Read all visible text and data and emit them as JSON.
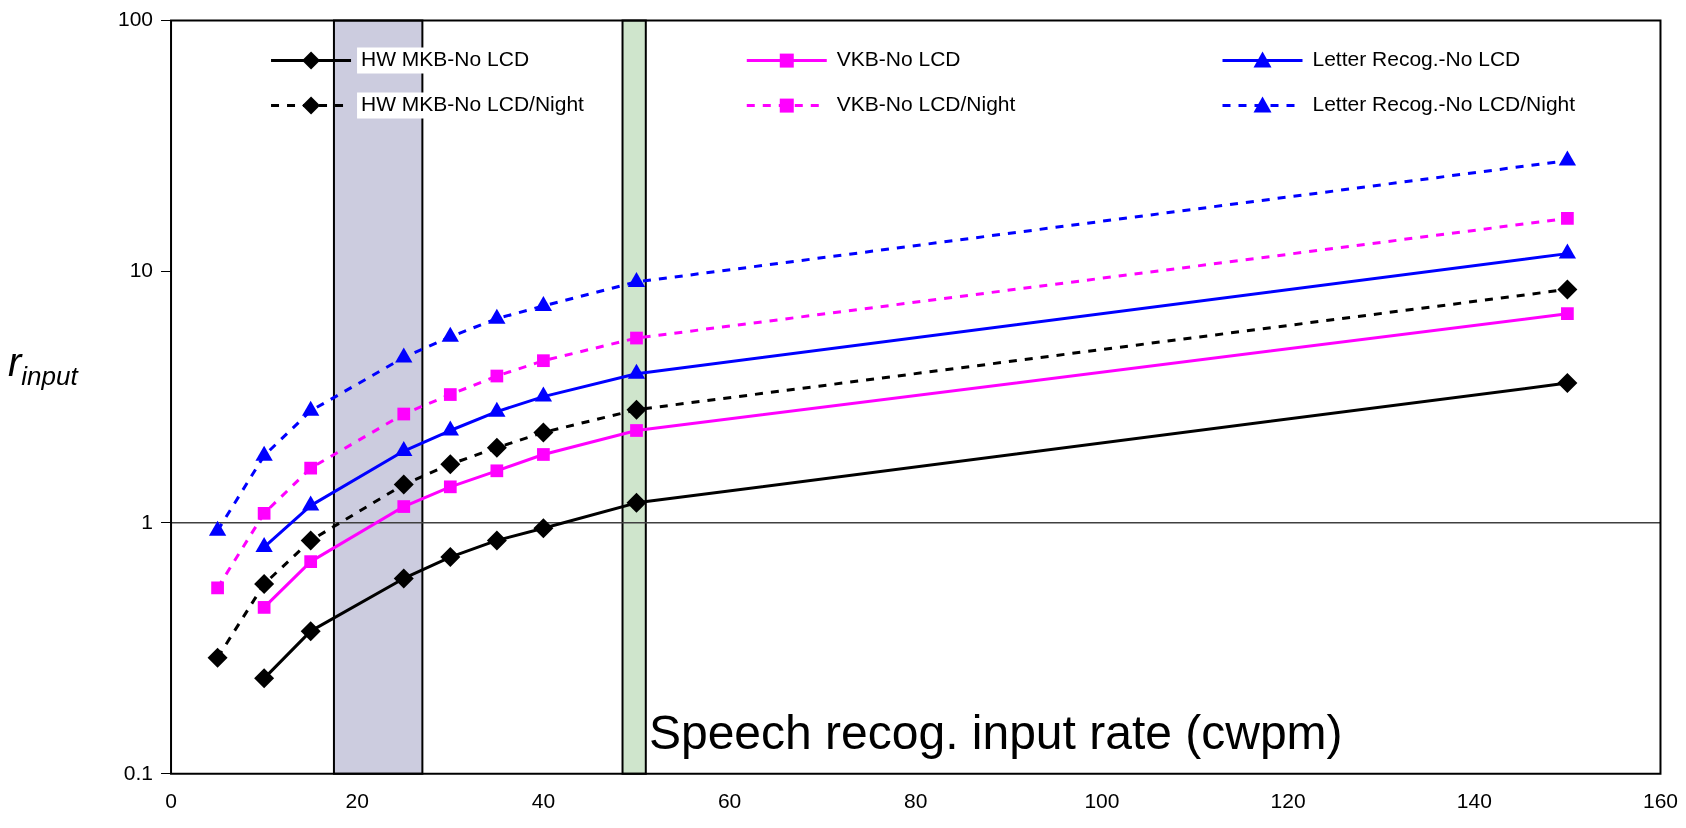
{
  "chart_data": {
    "type": "line",
    "xlabel": "Speech recog. input rate (cwpm)",
    "ylabel": "r$_{input}$",
    "xlim": [
      0,
      160
    ],
    "xticks": [
      0,
      20,
      40,
      60,
      80,
      100,
      120,
      140,
      160
    ],
    "ylim": [
      0.1,
      100
    ],
    "yticks": [
      0.1,
      1,
      10,
      100
    ],
    "log": "y",
    "grid": false,
    "legend": "top",
    "ref_lines": [
      {
        "axis": "y",
        "value": 1,
        "color": "#404040"
      }
    ],
    "bands": [
      {
        "axis": "x",
        "from": 17.5,
        "to": 27,
        "color": "#ccccdf"
      },
      {
        "axis": "x",
        "from": 48.5,
        "to": 51,
        "color": "#cfe5cc"
      }
    ],
    "series": [
      {
        "name": "HW MKB-No LCD",
        "color": "#000000",
        "marker": "diamond",
        "line_style": "solid",
        "x": [
          10,
          15,
          25,
          30,
          35,
          40,
          50,
          150
        ],
        "values": [
          0.24,
          0.37,
          0.6,
          0.73,
          0.85,
          0.95,
          1.2,
          3.6
        ]
      },
      {
        "name": "VKB-No LCD",
        "color": "#ff00ff",
        "marker": "square",
        "line_style": "solid",
        "x": [
          10,
          15,
          25,
          30,
          35,
          40,
          50,
          150
        ],
        "values": [
          0.46,
          0.7,
          1.16,
          1.39,
          1.61,
          1.87,
          2.33,
          6.8
        ]
      },
      {
        "name": "Letter Recog.-No LCD",
        "color": "#0000ff",
        "marker": "triangle",
        "line_style": "solid",
        "x": [
          10,
          15,
          25,
          30,
          35,
          40,
          50,
          150
        ],
        "values": [
          0.8,
          1.17,
          1.93,
          2.33,
          2.77,
          3.18,
          3.92,
          11.8
        ]
      },
      {
        "name": "HW MKB-No LCD/Night",
        "color": "#000000",
        "marker": "diamond",
        "line_style": "dashed",
        "x": [
          5,
          10,
          15,
          25,
          30,
          35,
          40,
          50,
          150
        ],
        "values": [
          0.29,
          0.57,
          0.85,
          1.42,
          1.71,
          1.99,
          2.29,
          2.82,
          8.5
        ]
      },
      {
        "name": "VKB-No LCD/Night",
        "color": "#ff00ff",
        "marker": "square",
        "line_style": "dashed",
        "x": [
          5,
          10,
          15,
          25,
          30,
          35,
          40,
          50,
          150
        ],
        "values": [
          0.55,
          1.09,
          1.65,
          2.71,
          3.24,
          3.84,
          4.42,
          5.44,
          16.3
        ]
      },
      {
        "name": "Letter Recog.-No LCD/Night",
        "color": "#0000ff",
        "marker": "triangle",
        "line_style": "dashed",
        "x": [
          5,
          10,
          15,
          25,
          30,
          35,
          40,
          50,
          150
        ],
        "values": [
          0.93,
          1.85,
          2.79,
          4.55,
          5.5,
          6.5,
          7.3,
          9.1,
          27.7
        ]
      }
    ]
  }
}
